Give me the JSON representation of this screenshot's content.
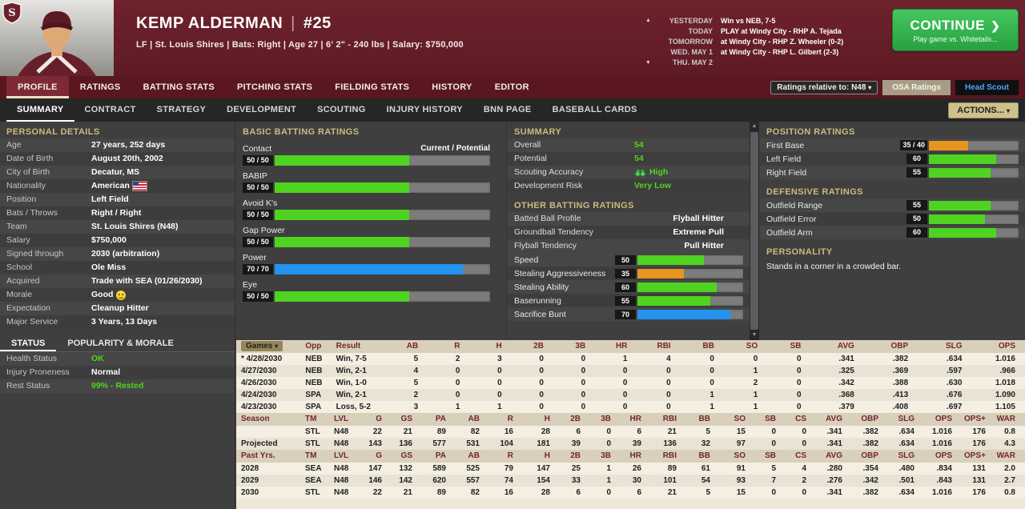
{
  "colors": {
    "green": "#4fd321",
    "blue": "#2493f2",
    "orange": "#e6961e",
    "accent_tan": "#cdb97e"
  },
  "header": {
    "player_name": "KEMP ALDERMAN",
    "name_divider": "|",
    "jersey_number": "#25",
    "bio_line": "LF | St. Louis Shires | Bats: Right   |   Age 27   |   6' 2\" - 240 lbs   |   Salary: $750,000",
    "schedule": [
      {
        "label": "YESTERDAY",
        "value": "Win vs NEB, 7-5"
      },
      {
        "label": "TODAY",
        "value": "PLAY at Windy City - RHP A. Tejada"
      },
      {
        "label": "TOMORROW",
        "value": "at Windy City - RHP Z. Wheeler (0-2)"
      },
      {
        "label": "WED. MAY 1",
        "value": "at Windy City - RHP L. Gilbert (2-3)"
      },
      {
        "label": "THU. MAY 2",
        "value": ""
      }
    ],
    "continue_button": {
      "label": "CONTINUE",
      "arrow": "❯",
      "subtext": "Play game vs. Whitetails..."
    }
  },
  "main_nav": {
    "tabs": [
      {
        "label": "PROFILE",
        "active": true
      },
      {
        "label": "RATINGS"
      },
      {
        "label": "BATTING STATS"
      },
      {
        "label": "PITCHING STATS"
      },
      {
        "label": "FIELDING STATS"
      },
      {
        "label": "HISTORY"
      },
      {
        "label": "EDITOR"
      }
    ],
    "ratings_relative": "Ratings relative to: N48",
    "osa_button": "OSA Ratings",
    "head_scout_button": "Head Scout"
  },
  "sub_nav": {
    "tabs": [
      {
        "label": "SUMMARY",
        "active": true
      },
      {
        "label": "CONTRACT"
      },
      {
        "label": "STRATEGY"
      },
      {
        "label": "DEVELOPMENT"
      },
      {
        "label": "SCOUTING"
      },
      {
        "label": "INJURY HISTORY"
      },
      {
        "label": "BNN PAGE"
      },
      {
        "label": "BASEBALL CARDS"
      }
    ],
    "actions_button": "ACTIONS..."
  },
  "personal_details": {
    "title": "PERSONAL DETAILS",
    "rows": [
      {
        "label": "Age",
        "value": "27 years, 252 days"
      },
      {
        "label": "Date of Birth",
        "value": "August 20th, 2002"
      },
      {
        "label": "City of Birth",
        "value": "Decatur, MS"
      },
      {
        "label": "Nationality",
        "value": "American",
        "icon": "us-flag-icon"
      },
      {
        "label": "Position",
        "value": "Left Field"
      },
      {
        "label": "Bats / Throws",
        "value": "Right / Right"
      },
      {
        "label": "Team",
        "value": "St. Louis Shires (N48)"
      },
      {
        "label": "Salary",
        "value": "$750,000"
      },
      {
        "label": "Signed through",
        "value": "2030 (arbitration)"
      },
      {
        "label": "School",
        "value": "Ole Miss"
      },
      {
        "label": "Acquired",
        "value": "Trade with SEA (01/26/2030)"
      },
      {
        "label": "Morale",
        "value": "Good",
        "icon": "smiley-icon"
      },
      {
        "label": "Expectation",
        "value": "Cleanup Hitter"
      },
      {
        "label": "Major Service",
        "value": "3 Years, 13 Days"
      }
    ]
  },
  "status_panel": {
    "tabs": [
      {
        "label": "STATUS",
        "active": true
      },
      {
        "label": "POPULARITY & MORALE"
      }
    ],
    "rows": [
      {
        "label": "Health Status",
        "value": "OK",
        "color": "green"
      },
      {
        "label": "Injury Proneness",
        "value": "Normal"
      },
      {
        "label": "Rest Status",
        "value": "99% - Rested",
        "color": "green"
      }
    ]
  },
  "basic_batting": {
    "title": "BASIC BATTING RATINGS",
    "scale_note": "Current / Potential",
    "bars": [
      {
        "label": "Contact",
        "text": "50 / 50",
        "value": 50,
        "color": "green"
      },
      {
        "label": "BABIP",
        "text": "50 / 50",
        "value": 50,
        "color": "green"
      },
      {
        "label": "Avoid K's",
        "text": "50 / 50",
        "value": 50,
        "color": "green"
      },
      {
        "label": "Gap Power",
        "text": "50 / 50",
        "value": 50,
        "color": "green"
      },
      {
        "label": "Power",
        "text": "70 / 70",
        "value": 70,
        "color": "blue"
      },
      {
        "label": "Eye",
        "text": "50 / 50",
        "value": 50,
        "color": "green"
      }
    ]
  },
  "summary_panel": {
    "title": "SUMMARY",
    "rows": [
      {
        "label": "Overall",
        "value": "54",
        "color": "green"
      },
      {
        "label": "Potential",
        "value": "54",
        "color": "green"
      },
      {
        "label": "Scouting Accuracy",
        "value": "High",
        "color": "green",
        "icon": "binoculars-icon",
        "icon_before": true
      },
      {
        "label": "Development Risk",
        "value": "Very Low",
        "color": "green"
      }
    ]
  },
  "other_batting": {
    "title": "OTHER BATTING RATINGS",
    "profile_rows": [
      {
        "label": "Batted Ball Profile",
        "value": "Flyball Hitter"
      },
      {
        "label": "Groundball Tendency",
        "value": "Extreme Pull"
      },
      {
        "label": "Flyball Tendency",
        "value": "Pull Hitter"
      }
    ],
    "bars": [
      {
        "label": "Speed",
        "text": "50",
        "value": 50,
        "color": "green"
      },
      {
        "label": "Stealing Aggressiveness",
        "text": "35",
        "value": 35,
        "color": "orange"
      },
      {
        "label": "Stealing Ability",
        "text": "60",
        "value": 60,
        "color": "green"
      },
      {
        "label": "Baserunning",
        "text": "55",
        "value": 55,
        "color": "green"
      },
      {
        "label": "Sacrifice Bunt",
        "text": "70",
        "value": 70,
        "color": "blue"
      }
    ]
  },
  "position_ratings": {
    "title": "POSITION RATINGS",
    "bars": [
      {
        "label": "First Base",
        "text": "35 / 40",
        "value": 35,
        "color": "orange"
      },
      {
        "label": "Left Field",
        "text": "60",
        "value": 60,
        "color": "green"
      },
      {
        "label": "Right Field",
        "text": "55",
        "value": 55,
        "color": "green"
      }
    ]
  },
  "defensive_ratings": {
    "title": "DEFENSIVE RATINGS",
    "bars": [
      {
        "label": "Outfield Range",
        "text": "55",
        "value": 55,
        "color": "green"
      },
      {
        "label": "Outfield Error",
        "text": "50",
        "value": 50,
        "color": "green"
      },
      {
        "label": "Outfield Arm",
        "text": "60",
        "value": 60,
        "color": "green"
      }
    ]
  },
  "personality": {
    "title": "PERSONALITY",
    "text": "Stands in a corner in a crowded bar."
  },
  "game_log": {
    "columns": [
      "Games",
      "Opp",
      "Result",
      "AB",
      "R",
      "H",
      "2B",
      "3B",
      "HR",
      "RBI",
      "BB",
      "SO",
      "SB",
      "AVG",
      "OBP",
      "SLG",
      "OPS"
    ],
    "rows": [
      [
        "* 4/28/2030",
        "NEB",
        "Win, 7-5",
        "5",
        "2",
        "3",
        "0",
        "0",
        "1",
        "4",
        "0",
        "0",
        "0",
        ".341",
        ".382",
        ".634",
        "1.016"
      ],
      [
        "4/27/2030",
        "NEB",
        "Win, 2-1",
        "4",
        "0",
        "0",
        "0",
        "0",
        "0",
        "0",
        "0",
        "1",
        "0",
        ".325",
        ".369",
        ".597",
        ".966"
      ],
      [
        "4/26/2030",
        "NEB",
        "Win, 1-0",
        "5",
        "0",
        "0",
        "0",
        "0",
        "0",
        "0",
        "0",
        "2",
        "0",
        ".342",
        ".388",
        ".630",
        "1.018"
      ],
      [
        "4/24/2030",
        "SPA",
        "Win, 2-1",
        "2",
        "0",
        "0",
        "0",
        "0",
        "0",
        "0",
        "1",
        "1",
        "0",
        ".368",
        ".413",
        ".676",
        "1.090"
      ],
      [
        "4/23/2030",
        "SPA",
        "Loss, 5-2",
        "3",
        "1",
        "1",
        "0",
        "0",
        "0",
        "0",
        "1",
        "1",
        "0",
        ".379",
        ".408",
        ".697",
        "1.105"
      ]
    ]
  },
  "season_stats": {
    "columns": [
      "Season",
      "TM",
      "LVL",
      "G",
      "GS",
      "PA",
      "AB",
      "R",
      "H",
      "2B",
      "3B",
      "HR",
      "RBI",
      "BB",
      "SO",
      "SB",
      "CS",
      "AVG",
      "OBP",
      "SLG",
      "OPS",
      "OPS+",
      "WAR"
    ],
    "rows": [
      [
        "",
        "STL",
        "N48",
        "22",
        "21",
        "89",
        "82",
        "16",
        "28",
        "6",
        "0",
        "6",
        "21",
        "5",
        "15",
        "0",
        "0",
        ".341",
        ".382",
        ".634",
        "1.016",
        "176",
        "0.8"
      ],
      [
        "Projected",
        "STL",
        "N48",
        "143",
        "136",
        "577",
        "531",
        "104",
        "181",
        "39",
        "0",
        "39",
        "136",
        "32",
        "97",
        "0",
        "0",
        ".341",
        ".382",
        ".634",
        "1.016",
        "176",
        "4.3"
      ]
    ]
  },
  "past_years": {
    "columns": [
      "Past Yrs.",
      "TM",
      "LVL",
      "G",
      "GS",
      "PA",
      "AB",
      "R",
      "H",
      "2B",
      "3B",
      "HR",
      "RBI",
      "BB",
      "SO",
      "SB",
      "CS",
      "AVG",
      "OBP",
      "SLG",
      "OPS",
      "OPS+",
      "WAR"
    ],
    "rows": [
      [
        "2028",
        "SEA",
        "N48",
        "147",
        "132",
        "589",
        "525",
        "79",
        "147",
        "25",
        "1",
        "26",
        "89",
        "61",
        "91",
        "5",
        "4",
        ".280",
        ".354",
        ".480",
        ".834",
        "131",
        "2.0"
      ],
      [
        "2029",
        "SEA",
        "N48",
        "146",
        "142",
        "620",
        "557",
        "74",
        "154",
        "33",
        "1",
        "30",
        "101",
        "54",
        "93",
        "7",
        "2",
        ".276",
        ".342",
        ".501",
        ".843",
        "131",
        "2.7"
      ],
      [
        "2030",
        "STL",
        "N48",
        "22",
        "21",
        "89",
        "82",
        "16",
        "28",
        "6",
        "0",
        "6",
        "21",
        "5",
        "15",
        "0",
        "0",
        ".341",
        ".382",
        ".634",
        "1.016",
        "176",
        "0.8"
      ]
    ]
  }
}
